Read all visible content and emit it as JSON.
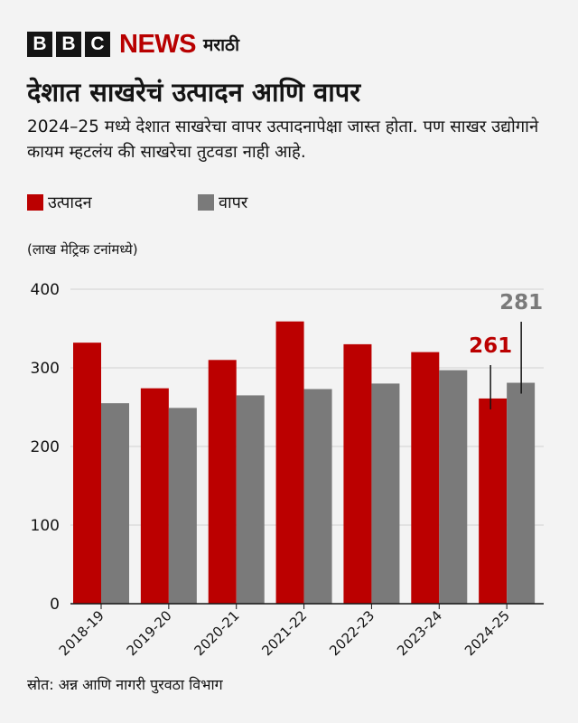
{
  "brand": {
    "box_letters": [
      "B",
      "B",
      "C"
    ],
    "news": "NEWS",
    "language": "मराठी",
    "accent_color": "#b80000"
  },
  "title": "देशात साखरेचं उत्पादन आणि वापर",
  "subtitle": "2024–25 मध्ये देशात साखरेचा वापर उत्पादनापेक्षा जास्त होता. पण साखर उद्योगाने कायम म्हटलंय की साखरेचा तुटवडा नाही आहे.",
  "unit_label": "(लाख मेट्रिक टनांमध्ये)",
  "source": "स्रोत: अन्न आणि नागरी पुरवठा विभाग",
  "chart_data": {
    "type": "bar",
    "categories": [
      "2018-19",
      "2019-20",
      "2020-21",
      "2021-22",
      "2022-23",
      "2023-24",
      "2024-25"
    ],
    "series": [
      {
        "name": "उत्पादन",
        "color": "#bb0000",
        "values": [
          332,
          274,
          310,
          359,
          330,
          320,
          261
        ]
      },
      {
        "name": "वापर",
        "color": "#7a7a7a",
        "values": [
          255,
          249,
          265,
          273,
          280,
          297,
          281
        ]
      }
    ],
    "ylim": [
      0,
      400
    ],
    "yticks": [
      0,
      100,
      200,
      300,
      400
    ],
    "grid": true,
    "legend": "top-left",
    "annotations": [
      {
        "category": "2024-25",
        "series": 0,
        "text": "261",
        "color": "#bb0000"
      },
      {
        "category": "2024-25",
        "series": 1,
        "text": "281",
        "color": "#7a7a7a"
      }
    ]
  }
}
